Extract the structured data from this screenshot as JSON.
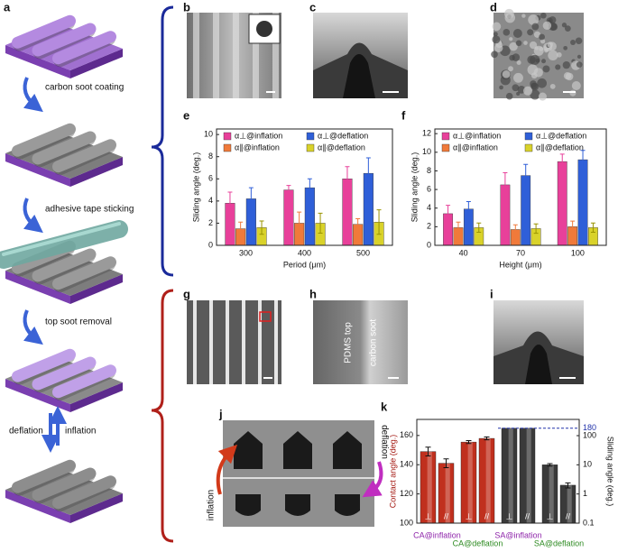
{
  "panel_labels": [
    "a",
    "b",
    "c",
    "d",
    "g",
    "h",
    "i",
    "j"
  ],
  "process_steps": [
    "carbon soot coating",
    "adhesive tape sticking",
    "top soot removal"
  ],
  "actuation": {
    "left": "deflation",
    "right": "inflation"
  },
  "panel_h": {
    "left": "PDMS top",
    "right": "carbon soot"
  },
  "panel_j": {
    "left": "inflation",
    "right": "deflation"
  },
  "chart_data": [
    {
      "type": "bar",
      "label": "e",
      "ylabel": "Sliding angle (deg.)",
      "xlabel": "Period (μm)",
      "categories": [
        "300",
        "400",
        "500"
      ],
      "ylim": [
        0,
        10.5
      ],
      "yticks": [
        0,
        2,
        4,
        6,
        8,
        10
      ],
      "series": [
        {
          "name": "α⊥@inflation",
          "color": "#e8409a",
          "values": [
            3.8,
            5.0,
            6.0
          ],
          "errors": [
            1.0,
            0.4,
            1.1
          ]
        },
        {
          "name": "α∥@inflation",
          "color": "#f07a3a",
          "values": [
            1.5,
            2.0,
            1.9
          ],
          "errors": [
            0.6,
            1.0,
            0.5
          ]
        },
        {
          "name": "α⊥@deflation",
          "color": "#2f5fd8",
          "values": [
            4.2,
            5.2,
            6.5
          ],
          "errors": [
            1.0,
            0.8,
            1.4
          ]
        },
        {
          "name": "α∥@deflation",
          "color": "#d9d22a",
          "values": [
            1.6,
            2.0,
            2.1
          ],
          "errors": [
            0.6,
            0.9,
            1.1
          ]
        }
      ]
    },
    {
      "type": "bar",
      "label": "f",
      "ylabel": "Sliding angle (deg.)",
      "xlabel": "Height (μm)",
      "categories": [
        "40",
        "70",
        "100"
      ],
      "ylim": [
        0,
        12.5
      ],
      "yticks": [
        0,
        2,
        4,
        6,
        8,
        10,
        12
      ],
      "series": [
        {
          "name": "α⊥@inflation",
          "color": "#e8409a",
          "values": [
            3.4,
            6.5,
            9.0
          ],
          "errors": [
            0.9,
            1.3,
            0.8
          ]
        },
        {
          "name": "α∥@inflation",
          "color": "#f07a3a",
          "values": [
            1.9,
            1.7,
            2.0
          ],
          "errors": [
            0.6,
            0.5,
            0.6
          ]
        },
        {
          "name": "α⊥@deflation",
          "color": "#2f5fd8",
          "values": [
            3.9,
            7.5,
            9.2
          ],
          "errors": [
            0.8,
            1.2,
            1.0
          ]
        },
        {
          "name": "α∥@deflation",
          "color": "#d9d22a",
          "values": [
            1.9,
            1.8,
            1.9
          ],
          "errors": [
            0.5,
            0.5,
            0.5
          ]
        }
      ]
    },
    {
      "type": "dualbar",
      "label": "k",
      "ylabel": "Contact angle (deg.)",
      "ylabel_color": "#a3160f",
      "y2label": "Sliding angle (deg.)",
      "ylim": [
        100,
        171
      ],
      "yticks": [
        100,
        120,
        140,
        160
      ],
      "y2scale": "log",
      "y2lim": [
        0.1,
        360
      ],
      "y2ticks": [
        0.1,
        1,
        10,
        100
      ],
      "reference": {
        "value": 180,
        "color": "#2233aa"
      },
      "groups": [
        {
          "name": "CA@inflation",
          "label_color": "#8e24aa",
          "axis": "y",
          "color": "#c0301e",
          "bars": [
            "⊥",
            "//"
          ],
          "values": [
            149,
            141
          ],
          "errors": [
            3,
            3
          ]
        },
        {
          "name": "CA@deflation",
          "label_color": "#2e8b22",
          "axis": "y",
          "color": "#c0301e",
          "bars": [
            "⊥",
            "//"
          ],
          "values": [
            155.5,
            158
          ],
          "errors": [
            1,
            1
          ]
        },
        {
          "name": "SA@inflation",
          "label_color": "#8e24aa",
          "axis": "y2",
          "color": "#3a3a3a",
          "bars": [
            "⊥",
            "//"
          ],
          "values": [
            180,
            180
          ],
          "errors": [
            0,
            0
          ]
        },
        {
          "name": "SA@deflation",
          "label_color": "#2e8b22",
          "axis": "y2",
          "color": "#3a3a3a",
          "bars": [
            "⊥",
            "//"
          ],
          "values": [
            10,
            2
          ],
          "errors": [
            1,
            0.4
          ]
        }
      ]
    }
  ]
}
